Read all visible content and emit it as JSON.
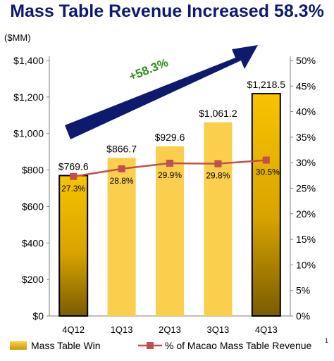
{
  "title": "Mass Table Revenue Increased 58.3%",
  "chart_data": {
    "type": "bar",
    "title": "Mass Table Revenue Increased 58.3%",
    "ylabel": "($MM)",
    "categories": [
      "4Q12",
      "1Q13",
      "2Q13",
      "3Q13",
      "4Q13"
    ],
    "y_ticks": [
      "$0",
      "$200",
      "$400",
      "$600",
      "$800",
      "$1,000",
      "$1,200",
      "$1,400"
    ],
    "y2_ticks": [
      "0%",
      "5%",
      "10%",
      "15%",
      "20%",
      "25%",
      "30%",
      "35%",
      "40%",
      "45%",
      "50%"
    ],
    "ylim": [
      0,
      1400
    ],
    "y2lim": [
      0,
      50
    ],
    "series": [
      {
        "name": "Mass Table Win",
        "type": "bar",
        "values": [
          769.6,
          866.7,
          929.6,
          1061.2,
          1218.5
        ],
        "labels": [
          "$769.6",
          "$866.7",
          "$929.6",
          "$1,061.2",
          "$1,218.5"
        ]
      },
      {
        "name": "% of Macao Mass Table Revenue",
        "type": "line",
        "axis": "right",
        "values": [
          27.3,
          28.8,
          29.9,
          29.8,
          30.5
        ],
        "labels": [
          "27.3%",
          "28.8%",
          "29.9%",
          "29.8%",
          "30.5%"
        ]
      }
    ],
    "legend_superscript": "1",
    "annotation": "+58.3%",
    "legend_position": "bottom",
    "colors": {
      "bar_light": "#f9cf4d",
      "bar_dark_top": "#f5c200",
      "bar_dark_bottom": "#7a5c00",
      "line": "#c0504d",
      "arrow": "#0d1a6e",
      "annotation": "#2e8b1e"
    }
  }
}
